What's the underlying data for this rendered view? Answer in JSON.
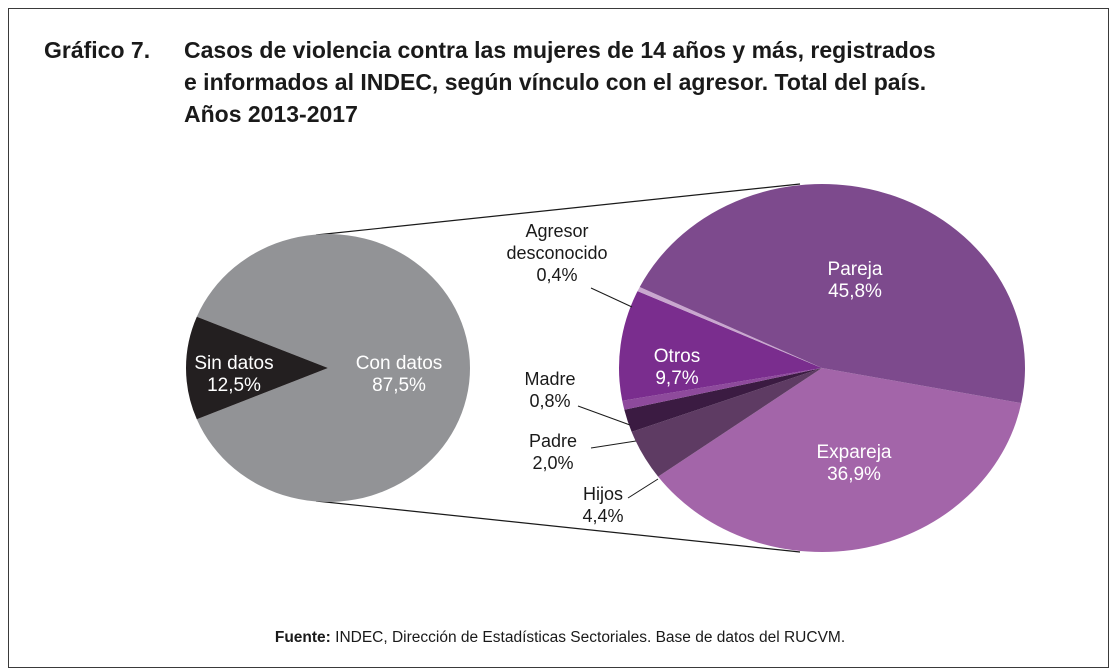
{
  "title": {
    "number": "Gráfico 7.",
    "line1": "Casos de violencia contra las mujeres de 14 años y más, registrados",
    "line2": "e informados al INDEC, según vínculo con el agresor. Total del país.",
    "line3": "Años 2013-2017"
  },
  "source": {
    "label": "Fuente:",
    "text": " INDEC, Dirección de Estadísticas Sectoriales. Base de datos del RUCVM."
  },
  "chart_data": [
    {
      "type": "pie",
      "slices": [
        {
          "label": "Con datos",
          "value": 87.5,
          "value_label": "87,5%",
          "color": "#929396"
        },
        {
          "label": "Sin datos",
          "value": 12.5,
          "value_label": "12,5%",
          "color": "#231f20"
        }
      ]
    },
    {
      "type": "pie",
      "slices": [
        {
          "label": "Pareja",
          "value": 45.8,
          "value_label": "45,8%",
          "color": "#7d4a8d"
        },
        {
          "label": "Expareja",
          "value": 36.9,
          "value_label": "36,9%",
          "color": "#a365a9"
        },
        {
          "label": "Hijos",
          "value": 4.4,
          "value_label": "4,4%",
          "color": "#5e3b63"
        },
        {
          "label": "Padre",
          "value": 2.0,
          "value_label": "2,0%",
          "color": "#3b1b42"
        },
        {
          "label": "Madre",
          "value": 0.8,
          "value_label": "0,8%",
          "color": "#8e4a9c"
        },
        {
          "label": "Otros",
          "value": 9.7,
          "value_label": "9,7%",
          "color": "#7a2d8e"
        },
        {
          "label": "Agresor desconocido",
          "value": 0.4,
          "value_label": "0,4%",
          "color": "#c9a7cf"
        }
      ]
    }
  ]
}
